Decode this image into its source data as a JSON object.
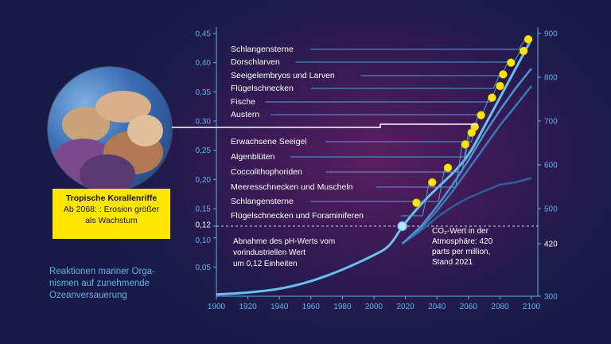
{
  "chart_data": {
    "type": "line",
    "x_ticks": [
      "1900",
      "1920",
      "1940",
      "1960",
      "1980",
      "2000",
      "2020",
      "2040",
      "2060",
      "2080",
      "2100"
    ],
    "y_left_ticks": [
      "0,05",
      "0,10",
      "0,12",
      "0,15",
      "0,20",
      "0,25",
      "0,30",
      "0,35",
      "0,40",
      "0,45"
    ],
    "y_left_values": [
      0.05,
      0.1,
      0.12,
      0.15,
      0.2,
      0.25,
      0.3,
      0.35,
      0.4,
      0.45
    ],
    "y_right_ticks": [
      "300",
      "420",
      "500",
      "600",
      "700",
      "800",
      "900"
    ],
    "y_right_values": [
      300,
      420,
      500,
      600,
      700,
      800,
      900
    ],
    "xlim": [
      1900,
      2100
    ],
    "ylim_left": [
      0.0,
      0.45
    ],
    "ylim_right": [
      300,
      900
    ],
    "ph_curve": [
      [
        1900,
        0.003
      ],
      [
        1920,
        0.006
      ],
      [
        1940,
        0.012
      ],
      [
        1960,
        0.025
      ],
      [
        1980,
        0.045
      ],
      [
        2000,
        0.07
      ],
      [
        2010,
        0.085
      ],
      [
        2018,
        0.12
      ],
      [
        2030,
        0.158
      ],
      [
        2040,
        0.185
      ],
      [
        2050,
        0.21
      ],
      [
        2060,
        0.24
      ],
      [
        2070,
        0.29
      ],
      [
        2080,
        0.34
      ],
      [
        2090,
        0.39
      ],
      [
        2100,
        0.44
      ]
    ],
    "co2_scenarios": [
      [
        [
          2018,
          420
        ],
        [
          2030,
          450
        ],
        [
          2040,
          480
        ],
        [
          2050,
          505
        ],
        [
          2060,
          525
        ],
        [
          2070,
          540
        ],
        [
          2080,
          555
        ],
        [
          2090,
          560
        ],
        [
          2100,
          570
        ]
      ],
      [
        [
          2018,
          420
        ],
        [
          2030,
          455
        ],
        [
          2040,
          495
        ],
        [
          2050,
          540
        ],
        [
          2060,
          590
        ],
        [
          2070,
          640
        ],
        [
          2080,
          690
        ],
        [
          2090,
          735
        ],
        [
          2100,
          780
        ]
      ],
      [
        [
          2018,
          420
        ],
        [
          2030,
          460
        ],
        [
          2040,
          505
        ],
        [
          2050,
          555
        ],
        [
          2060,
          610
        ],
        [
          2070,
          670
        ],
        [
          2080,
          725
        ],
        [
          2090,
          775
        ],
        [
          2100,
          820
        ]
      ]
    ],
    "organisms": [
      {
        "label": "Schlangensterne",
        "year": 2098,
        "y": 0.44
      },
      {
        "label": "Dorschlarven",
        "year": 2095,
        "y": 0.42
      },
      {
        "label": "Seeigelembryos und Larven",
        "year": 2087,
        "y": 0.4
      },
      {
        "label": "Flügelschnecken",
        "year": 2082,
        "y": 0.38
      },
      {
        "label": "Fische",
        "year": 2080,
        "y": 0.36
      },
      {
        "label": "Austern",
        "year": 2075,
        "y": 0.34
      },
      {
        "label": "Erwachsene Seeigel",
        "year": 2068,
        "y": 0.31
      },
      {
        "label": "Algenblüten",
        "year": 2064,
        "y": 0.29
      },
      {
        "label": "Coccolithophoriden",
        "year": 2062,
        "y": 0.28
      },
      {
        "label": "Meeresschnecken und Muscheln",
        "year": 2058,
        "y": 0.26
      },
      {
        "label": "Schlangensterne",
        "year": 2047,
        "y": 0.22
      },
      {
        "label": "Flügelschnecken und Foraminiferen",
        "year": 2037,
        "y": 0.195
      },
      {
        "label": "",
        "year": 2027,
        "y": 0.16
      }
    ],
    "current_point": {
      "year": 2018,
      "y": 0.12,
      "co2": 420
    },
    "coral_year": 2068
  },
  "annotations": {
    "ph_note": [
      "Abnahme des pH-Werts vom",
      "vorindustriellen Wert",
      "um 0,12 Einheiten"
    ],
    "co2_note": [
      "CO₂-Wert in der",
      "Atmosphäre: 420",
      "parts per million,",
      "Stand 2021"
    ]
  },
  "coral_box": {
    "title": "Tropische Korallenriffe",
    "line1": "Ab 2068: : Erosion größer",
    "line2": "als Wachstum"
  },
  "caption": [
    "Reaktionen mariner Orga-",
    "nismen auf zunehmende",
    "Ozeanversauerung"
  ],
  "colors": {
    "axis": "#5fb2e8",
    "curve": "#6bc0f0",
    "dot": "#ffe500",
    "label_text": "#ffffff",
    "leader": "#4f9fd6"
  }
}
